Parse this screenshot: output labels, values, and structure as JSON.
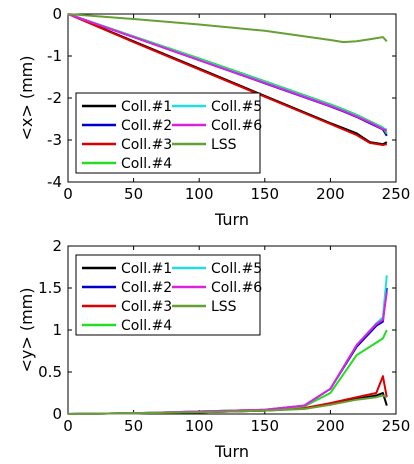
{
  "chart_data": [
    {
      "type": "line",
      "xlabel": "Turn",
      "ylabel": "<x> (mm)",
      "xlim": [
        0,
        250
      ],
      "ylim": [
        -4,
        0
      ],
      "xticks": [
        "0",
        "50",
        "100",
        "150",
        "200",
        "250"
      ],
      "yticks": [
        "-4",
        "-3",
        "-2",
        "-1",
        "0"
      ],
      "legend_placement": "bottom-left",
      "series": [
        {
          "name": "Coll.#1",
          "color": "#000000",
          "x": [
            0,
            50,
            100,
            150,
            200,
            210,
            220,
            230,
            240,
            243
          ],
          "values": [
            0,
            -0.65,
            -1.3,
            -1.95,
            -2.6,
            -2.72,
            -2.84,
            -3.05,
            -3.1,
            -3.05
          ]
        },
        {
          "name": "Coll.#2",
          "color": "#0000cc",
          "x": [
            0,
            50,
            100,
            150,
            200,
            210,
            220,
            230,
            240,
            243
          ],
          "values": [
            0,
            -0.55,
            -1.1,
            -1.65,
            -2.2,
            -2.32,
            -2.45,
            -2.6,
            -2.75,
            -2.9
          ]
        },
        {
          "name": "Coll.#3",
          "color": "#dd0000",
          "x": [
            0,
            50,
            100,
            150,
            200,
            210,
            220,
            230,
            240,
            243
          ],
          "values": [
            0,
            -0.67,
            -1.32,
            -1.97,
            -2.62,
            -2.75,
            -2.88,
            -3.07,
            -3.12,
            -3.1
          ]
        },
        {
          "name": "Coll.#4",
          "color": "#22dd22",
          "x": [
            0,
            50,
            100,
            150,
            200,
            210,
            220,
            230,
            240,
            243
          ],
          "values": [
            0,
            -0.53,
            -1.06,
            -1.6,
            -2.15,
            -2.27,
            -2.4,
            -2.55,
            -2.7,
            -2.85
          ]
        },
        {
          "name": "Coll.#5",
          "color": "#22dddd",
          "x": [
            0,
            50,
            100,
            150,
            200,
            210,
            220,
            230,
            240,
            243
          ],
          "values": [
            0,
            -0.54,
            -1.08,
            -1.62,
            -2.17,
            -2.29,
            -2.42,
            -2.57,
            -2.72,
            -2.75
          ]
        },
        {
          "name": "Coll.#6",
          "color": "#dd22dd",
          "x": [
            0,
            50,
            100,
            150,
            200,
            210,
            220,
            230,
            240,
            243
          ],
          "values": [
            0,
            -0.55,
            -1.1,
            -1.64,
            -2.19,
            -2.31,
            -2.44,
            -2.58,
            -2.74,
            -2.78
          ]
        },
        {
          "name": "LSS",
          "color": "#66a033",
          "x": [
            0,
            50,
            100,
            150,
            200,
            210,
            220,
            230,
            240,
            243
          ],
          "values": [
            0,
            -0.12,
            -0.25,
            -0.4,
            -0.62,
            -0.67,
            -0.65,
            -0.6,
            -0.55,
            -0.65
          ]
        }
      ]
    },
    {
      "type": "line",
      "xlabel": "Turn",
      "ylabel": "<y> (mm)",
      "xlim": [
        0,
        250
      ],
      "ylim": [
        0,
        2
      ],
      "xticks": [
        "0",
        "50",
        "100",
        "150",
        "200",
        "250"
      ],
      "yticks": [
        "0",
        "0.5",
        "1",
        "1.5",
        "2"
      ],
      "legend_placement": "top-left",
      "series": [
        {
          "name": "Coll.#1",
          "color": "#000000",
          "x": [
            0,
            50,
            100,
            150,
            180,
            200,
            220,
            235,
            240,
            243
          ],
          "values": [
            0,
            0.01,
            0.02,
            0.04,
            0.07,
            0.12,
            0.18,
            0.22,
            0.25,
            0.1
          ]
        },
        {
          "name": "Coll.#2",
          "color": "#0000cc",
          "x": [
            0,
            50,
            100,
            150,
            180,
            200,
            220,
            235,
            240,
            243
          ],
          "values": [
            0,
            0.01,
            0.03,
            0.05,
            0.1,
            0.3,
            0.8,
            1.05,
            1.1,
            1.5
          ]
        },
        {
          "name": "Coll.#3",
          "color": "#dd0000",
          "x": [
            0,
            50,
            100,
            150,
            180,
            200,
            220,
            235,
            240,
            243
          ],
          "values": [
            0,
            0.01,
            0.02,
            0.04,
            0.07,
            0.13,
            0.2,
            0.25,
            0.45,
            0.2
          ]
        },
        {
          "name": "Coll.#4",
          "color": "#22dd22",
          "x": [
            0,
            50,
            100,
            150,
            180,
            200,
            220,
            235,
            240,
            243
          ],
          "values": [
            0,
            0.01,
            0.03,
            0.05,
            0.09,
            0.25,
            0.7,
            0.85,
            0.9,
            1.0
          ]
        },
        {
          "name": "Coll.#5",
          "color": "#22dddd",
          "x": [
            0,
            50,
            100,
            150,
            180,
            200,
            220,
            235,
            240,
            243
          ],
          "values": [
            0,
            0.01,
            0.03,
            0.05,
            0.1,
            0.3,
            0.82,
            1.08,
            1.15,
            1.65
          ]
        },
        {
          "name": "Coll.#6",
          "color": "#dd22dd",
          "x": [
            0,
            50,
            100,
            150,
            180,
            200,
            220,
            235,
            240,
            243
          ],
          "values": [
            0,
            0.01,
            0.03,
            0.05,
            0.1,
            0.3,
            0.82,
            1.07,
            1.12,
            1.45
          ]
        },
        {
          "name": "LSS",
          "color": "#66a033",
          "x": [
            0,
            50,
            100,
            150,
            180,
            200,
            220,
            235,
            240,
            243
          ],
          "values": [
            0,
            0.01,
            0.02,
            0.04,
            0.06,
            0.11,
            0.17,
            0.2,
            0.22,
            0.2
          ]
        }
      ]
    }
  ]
}
